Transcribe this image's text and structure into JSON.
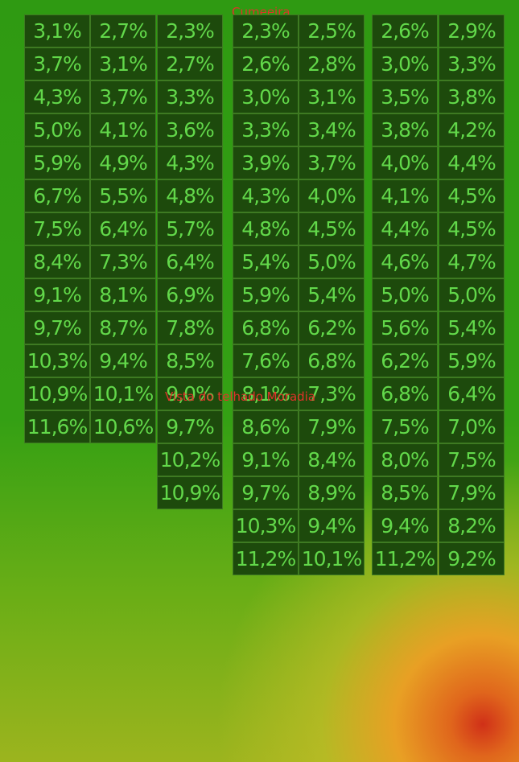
{
  "labels": {
    "top": "Cumeeira",
    "middle": "Vista do telhado Moradia"
  },
  "columns": [
    [
      "3,1%",
      "3,7%",
      "4,3%",
      "5,0%",
      "5,9%",
      "6,7%",
      "7,5%",
      "8,4%",
      "9,1%",
      "9,7%",
      "10,3%",
      "10,9%",
      "11,6%"
    ],
    [
      "2,7%",
      "3,1%",
      "3,7%",
      "4,1%",
      "4,9%",
      "5,5%",
      "6,4%",
      "7,3%",
      "8,1%",
      "8,7%",
      "9,4%",
      "10,1%",
      "10,6%"
    ],
    [
      "2,3%",
      "2,7%",
      "3,3%",
      "3,6%",
      "4,3%",
      "4,8%",
      "5,7%",
      "6,4%",
      "6,9%",
      "7,8%",
      "8,5%",
      "9,0%",
      "9,7%",
      "10,2%",
      "10,9%"
    ],
    [
      "2,3%",
      "2,6%",
      "3,0%",
      "3,3%",
      "3,9%",
      "4,3%",
      "4,8%",
      "5,4%",
      "5,9%",
      "6,8%",
      "7,6%",
      "8,1%",
      "8,6%",
      "9,1%",
      "9,7%",
      "10,3%",
      "11,2%"
    ],
    [
      "2,5%",
      "2,8%",
      "3,1%",
      "3,4%",
      "3,7%",
      "4,0%",
      "4,5%",
      "5,0%",
      "5,4%",
      "6,2%",
      "6,8%",
      "7,3%",
      "7,9%",
      "8,4%",
      "8,9%",
      "9,4%",
      "10,1%"
    ],
    [
      "2,6%",
      "3,0%",
      "3,5%",
      "3,8%",
      "4,0%",
      "4,1%",
      "4,4%",
      "4,6%",
      "5,0%",
      "5,6%",
      "6,2%",
      "6,8%",
      "7,5%",
      "8,0%",
      "8,5%",
      "9,4%",
      "11,2%"
    ],
    [
      "2,9%",
      "3,3%",
      "3,8%",
      "4,2%",
      "4,4%",
      "4,5%",
      "4,5%",
      "4,7%",
      "5,0%",
      "5,4%",
      "5,9%",
      "6,4%",
      "7,0%",
      "7,5%",
      "7,9%",
      "8,2%",
      "9,2%"
    ]
  ]
}
